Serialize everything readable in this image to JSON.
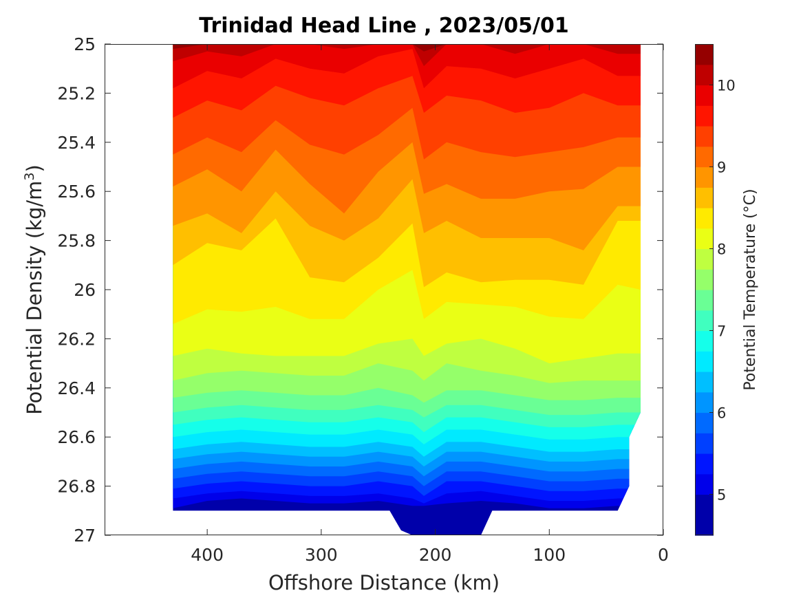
{
  "chart_data": {
    "type": "heatmap",
    "subtype": "filled-contour",
    "title": "Trinidad Head Line , 2023/05/01",
    "xlabel": "Offshore Distance (km)",
    "ylabel_main": "Potential Density (kg/m",
    "ylabel_sup": "3",
    "ylabel_close": ")",
    "xlim": [
      490,
      0
    ],
    "x_reversed": true,
    "ylim": [
      27,
      25
    ],
    "y_reversed": true,
    "xticks": [
      400,
      300,
      200,
      100,
      0
    ],
    "xtick_labels": [
      "400",
      "300",
      "200",
      "100",
      "0"
    ],
    "yticks": [
      25,
      25.2,
      25.4,
      25.6,
      25.8,
      26,
      26.2,
      26.4,
      26.6,
      26.8,
      27
    ],
    "ytick_labels": [
      "25",
      "25.2",
      "25.4",
      "25.6",
      "25.8",
      "26",
      "26.2",
      "26.4",
      "26.6",
      "26.8",
      "27"
    ],
    "colorbar": {
      "label": "Potential Temperature (°C)",
      "range": [
        4.5,
        10.5
      ],
      "ticks": [
        5,
        6,
        7,
        8,
        9,
        10
      ],
      "tick_labels": [
        "5",
        "6",
        "7",
        "8",
        "9",
        "10"
      ],
      "colormap": "jet"
    },
    "x": [
      430,
      400,
      370,
      340,
      310,
      280,
      250,
      220,
      210,
      190,
      160,
      130,
      100,
      70,
      40,
      20
    ],
    "contour_levels_degC": [
      5.0,
      5.25,
      5.5,
      5.75,
      6.0,
      6.25,
      6.5,
      6.75,
      7.0,
      7.25,
      7.5,
      7.75,
      8.0,
      8.25,
      8.5,
      8.75,
      9.0,
      9.25,
      9.5,
      9.75,
      10.0,
      10.25
    ],
    "isopycnal_depth_of_levels": [
      [
        26.89,
        26.86,
        26.85,
        26.86,
        26.87,
        26.87,
        26.86,
        26.88,
        26.88,
        26.87,
        26.86,
        26.87,
        26.89,
        26.89,
        26.88,
        26.88
      ],
      [
        26.85,
        26.83,
        26.82,
        26.83,
        26.84,
        26.84,
        26.83,
        26.85,
        26.87,
        26.83,
        26.82,
        26.84,
        26.86,
        26.86,
        26.85,
        26.85
      ],
      [
        26.81,
        26.79,
        26.78,
        26.79,
        26.8,
        26.8,
        26.78,
        26.8,
        26.84,
        26.78,
        26.78,
        26.8,
        26.82,
        26.82,
        26.81,
        26.81
      ],
      [
        26.77,
        26.75,
        26.74,
        26.75,
        26.76,
        26.76,
        26.74,
        26.76,
        26.8,
        26.74,
        26.74,
        26.76,
        26.78,
        26.78,
        26.77,
        26.77
      ],
      [
        26.73,
        26.71,
        26.7,
        26.71,
        26.72,
        26.72,
        26.7,
        26.72,
        26.76,
        26.7,
        26.7,
        26.72,
        26.74,
        26.74,
        26.73,
        26.73
      ],
      [
        26.69,
        26.67,
        26.66,
        26.67,
        26.68,
        26.68,
        26.66,
        26.68,
        26.72,
        26.66,
        26.66,
        26.68,
        26.7,
        26.7,
        26.69,
        26.69
      ],
      [
        26.65,
        26.63,
        26.62,
        26.63,
        26.64,
        26.64,
        26.62,
        26.64,
        26.68,
        26.62,
        26.62,
        26.64,
        26.66,
        26.66,
        26.65,
        26.65
      ],
      [
        26.6,
        26.58,
        26.57,
        26.58,
        26.59,
        26.59,
        26.57,
        26.59,
        26.63,
        26.57,
        26.57,
        26.59,
        26.61,
        26.61,
        26.6,
        26.6
      ],
      [
        26.55,
        26.53,
        26.52,
        26.53,
        26.54,
        26.54,
        26.52,
        26.54,
        26.58,
        26.52,
        26.52,
        26.54,
        26.56,
        26.56,
        26.55,
        26.55
      ],
      [
        26.5,
        26.48,
        26.47,
        26.48,
        26.49,
        26.49,
        26.47,
        26.49,
        26.52,
        26.47,
        26.47,
        26.49,
        26.51,
        26.51,
        26.5,
        26.5
      ],
      [
        26.44,
        26.42,
        26.41,
        26.42,
        26.43,
        26.43,
        26.4,
        26.43,
        26.46,
        26.41,
        26.41,
        26.43,
        26.45,
        26.45,
        26.44,
        26.44
      ],
      [
        26.37,
        26.34,
        26.33,
        26.34,
        26.35,
        26.35,
        26.3,
        26.33,
        26.37,
        26.3,
        26.33,
        26.35,
        26.38,
        26.37,
        26.37,
        26.37
      ],
      [
        26.27,
        26.24,
        26.26,
        26.27,
        26.27,
        26.27,
        26.22,
        26.2,
        26.27,
        26.22,
        26.2,
        26.24,
        26.3,
        26.28,
        26.26,
        26.26
      ],
      [
        26.14,
        26.08,
        26.09,
        26.07,
        26.12,
        26.12,
        26.0,
        25.92,
        26.12,
        26.05,
        26.06,
        26.07,
        26.11,
        26.12,
        25.98,
        26.0
      ],
      [
        25.9,
        25.81,
        25.84,
        25.71,
        25.95,
        25.97,
        25.87,
        25.73,
        25.99,
        25.93,
        25.97,
        25.96,
        25.96,
        25.98,
        25.72,
        25.72
      ],
      [
        25.74,
        25.69,
        25.77,
        25.6,
        25.74,
        25.8,
        25.71,
        25.55,
        25.77,
        25.72,
        25.79,
        25.79,
        25.79,
        25.84,
        25.66,
        25.66
      ],
      [
        25.58,
        25.51,
        25.6,
        25.43,
        25.57,
        25.69,
        25.52,
        25.4,
        25.61,
        25.57,
        25.63,
        25.63,
        25.6,
        25.59,
        25.5,
        25.5
      ],
      [
        25.45,
        25.38,
        25.44,
        25.31,
        25.41,
        25.45,
        25.37,
        25.26,
        25.47,
        25.4,
        25.44,
        25.46,
        25.44,
        25.42,
        25.38,
        25.38
      ],
      [
        25.3,
        25.23,
        25.27,
        25.17,
        25.22,
        25.25,
        25.18,
        25.13,
        25.28,
        25.21,
        25.23,
        25.28,
        25.26,
        25.2,
        25.25,
        25.25
      ],
      [
        25.18,
        25.11,
        25.14,
        25.06,
        25.1,
        25.12,
        25.05,
        25.02,
        25.18,
        25.09,
        25.1,
        25.14,
        25.1,
        25.06,
        25.13,
        25.13
      ],
      [
        25.07,
        25.03,
        25.05,
        25.0,
        25.0,
        25.02,
        25.0,
        25.0,
        25.09,
        25.0,
        25.0,
        25.04,
        25.0,
        25.0,
        25.04,
        25.04
      ],
      [
        25.02,
        25.0,
        25.0,
        25.0,
        25.0,
        25.0,
        25.0,
        25.0,
        25.03,
        25.0,
        25.0,
        25.0,
        25.0,
        25.0,
        25.0,
        25.0
      ]
    ],
    "data_boundary": {
      "x": [
        430,
        430,
        240,
        230,
        220,
        200,
        180,
        160,
        150,
        40,
        30,
        30,
        20,
        20
      ],
      "y": [
        25.0,
        26.9,
        26.9,
        26.98,
        27.0,
        27.0,
        27.0,
        27.0,
        26.9,
        26.9,
        26.8,
        26.6,
        26.5,
        25.0
      ]
    },
    "grid": false,
    "legend": "none"
  }
}
